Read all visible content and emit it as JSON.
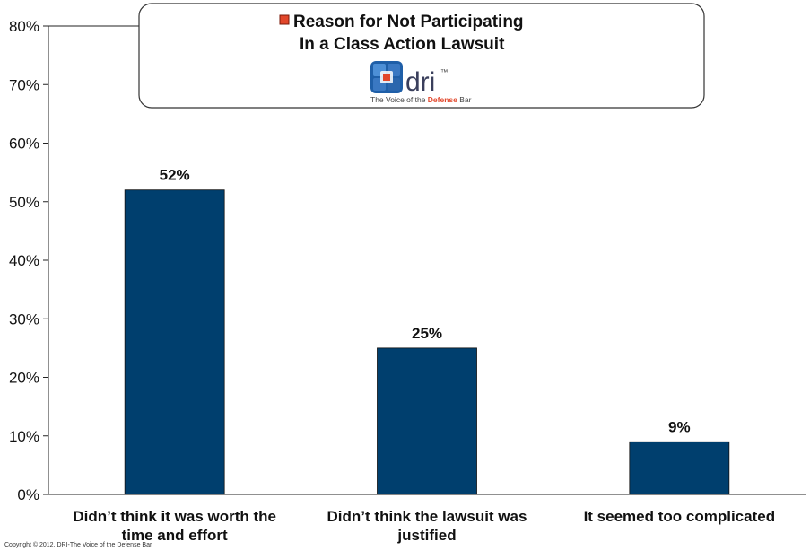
{
  "chart_data": {
    "type": "bar",
    "title": "",
    "xlabel": "",
    "ylabel": "",
    "categories": [
      [
        "Didn’t think it was worth the",
        "time and effort"
      ],
      [
        "Didn’t think the lawsuit was",
        "justified"
      ],
      [
        "It seemed too complicated"
      ]
    ],
    "series": [
      {
        "name": "Reason for Not Participating In a Class Action Lawsuit",
        "name_lines": [
          "Reason for Not Participating",
          "In a Class Action Lawsuit"
        ],
        "values": [
          52,
          25,
          9
        ],
        "value_labels": [
          "52%",
          "25%",
          "9%"
        ],
        "color": "#003f6e"
      }
    ],
    "ylim": [
      0,
      80
    ],
    "yticks": [
      0,
      10,
      20,
      30,
      40,
      50,
      60,
      70,
      80
    ],
    "ytick_labels": [
      "0%",
      "10%",
      "20%",
      "30%",
      "40%",
      "50%",
      "60%",
      "70%",
      "80%"
    ],
    "grid": false,
    "legend_position": "top-center"
  },
  "colors": {
    "bar": "#003f6e",
    "legend_marker": "#e2472b",
    "logo_blue": "#1f5fa8",
    "logo_accent": "#e2472b"
  },
  "logo": {
    "icon": "dri-logo-icon",
    "name": "dri",
    "trademark": "™",
    "tagline_prefix": "The Voice of the ",
    "tagline_highlight": "Defense",
    "tagline_suffix": " Bar"
  },
  "footer": {
    "copyright": "Copyright © 2012, DRI-The Voice of the Defense Bar"
  }
}
